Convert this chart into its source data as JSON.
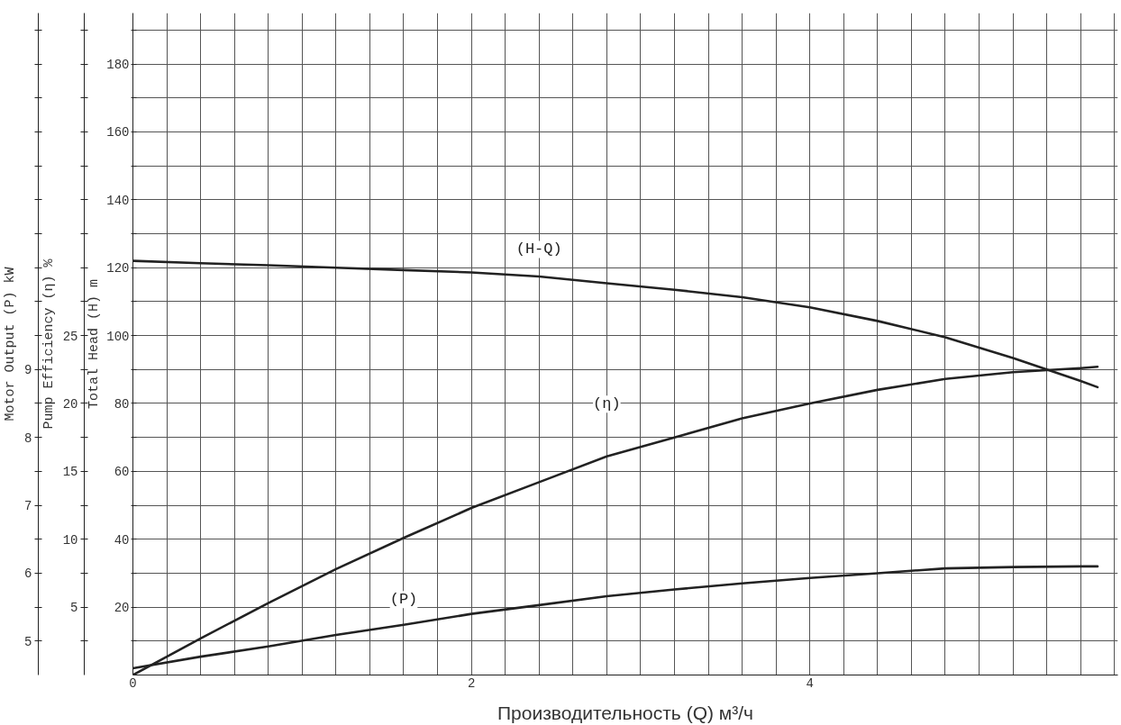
{
  "chart_data": {
    "type": "line",
    "xlabel": "Производительность (Q) м³/ч",
    "ylabel": "Total Head (H) m",
    "y2label": "Pump Efficiency (η) %",
    "y3label": "Motor Output (P) kW",
    "x": [
      0,
      0.4,
      0.8,
      1.2,
      1.6,
      2.0,
      2.4,
      2.8,
      3.2,
      3.6,
      4.0,
      4.4,
      4.8,
      5.2,
      5.6,
      5.7
    ],
    "xlim": [
      0,
      5.82
    ],
    "xticks": [
      0,
      {
        "value": 0.2,
        "label": null
      },
      {
        "value": 0.4,
        "label": null
      },
      {
        "value": 0.6,
        "label": null
      },
      {
        "value": 0.8,
        "label": null
      },
      {
        "value": 1,
        "label": null
      },
      {
        "value": 1.2,
        "label": null
      },
      {
        "value": 1.4,
        "label": null
      },
      {
        "value": 1.6,
        "label": null
      },
      {
        "value": 1.8,
        "label": null
      },
      2,
      {
        "value": 2.2,
        "label": null
      },
      {
        "value": 2.4,
        "label": null
      },
      {
        "value": 2.6,
        "label": null
      },
      {
        "value": 2.8,
        "label": null
      },
      {
        "value": 3,
        "label": null
      },
      {
        "value": 3.2,
        "label": null
      },
      {
        "value": 3.4,
        "label": null
      },
      {
        "value": 3.6,
        "label": null
      },
      {
        "value": 3.8,
        "label": null
      },
      4,
      {
        "value": 4.2,
        "label": null
      },
      {
        "value": 4.4,
        "label": null
      },
      {
        "value": 4.6,
        "label": null
      },
      {
        "value": 4.8,
        "label": null
      },
      {
        "value": 5,
        "label": null
      },
      {
        "value": 5.2,
        "label": null
      },
      {
        "value": 5.4,
        "label": null
      },
      {
        "value": 5.6,
        "label": null
      },
      {
        "value": 5.8,
        "label": null
      }
    ],
    "ylim": [
      0,
      195
    ],
    "yticks": [
      {
        "value": 10,
        "label": null
      },
      20,
      {
        "value": 30,
        "label": null
      },
      40,
      {
        "value": 50,
        "label": null
      },
      60,
      {
        "value": 70,
        "label": null
      },
      80,
      {
        "value": 90,
        "label": null
      },
      100,
      {
        "value": 110,
        "label": null
      },
      120,
      {
        "value": 130,
        "label": null
      },
      140,
      {
        "value": 150,
        "label": null
      },
      160,
      {
        "value": 170,
        "label": null
      },
      180,
      {
        "value": 190,
        "label": null
      }
    ],
    "y2lim": [
      0,
      48.75
    ],
    "y2ticks": [
      {
        "value": 2.5,
        "label": null
      },
      5,
      {
        "value": 7.5,
        "label": null
      },
      10,
      {
        "value": 12.5,
        "label": null
      },
      15,
      {
        "value": 17.5,
        "label": null
      },
      20,
      {
        "value": 22.5,
        "label": null
      },
      25,
      {
        "value": 27.5,
        "label": null
      },
      {
        "value": 30,
        "label": null
      },
      {
        "value": 32.5,
        "label": null
      },
      {
        "value": 35,
        "label": null
      },
      {
        "value": 37.5,
        "label": null
      },
      {
        "value": 40,
        "label": null
      },
      {
        "value": 42.5,
        "label": null
      },
      {
        "value": 45,
        "label": null
      },
      {
        "value": 47.5,
        "label": null
      }
    ],
    "y3lim": [
      4.5,
      14.25
    ],
    "y3ticks": [
      5,
      {
        "value": 5.5,
        "label": null
      },
      6,
      {
        "value": 6.5,
        "label": null
      },
      7,
      {
        "value": 7.5,
        "label": null
      },
      8,
      {
        "value": 8.5,
        "label": null
      },
      9,
      {
        "value": 9.5,
        "label": null
      },
      {
        "value": 10,
        "label": null
      },
      {
        "value": 10.5,
        "label": null
      },
      {
        "value": 11,
        "label": null
      },
      {
        "value": 11.5,
        "label": null
      },
      {
        "value": 12,
        "label": null
      },
      {
        "value": 12.5,
        "label": null
      },
      {
        "value": 13,
        "label": null
      },
      {
        "value": 13.5,
        "label": null
      },
      {
        "value": 14,
        "label": null
      }
    ],
    "grid": true,
    "series": [
      {
        "name": "(H-Q)",
        "color": "#222222",
        "values": [
          122,
          121.3,
          120.7,
          120.0,
          119.3,
          118.6,
          117.4,
          115.4,
          113.5,
          111.3,
          108.3,
          104.3,
          99.5,
          93.4,
          86.6,
          84.8
        ]
      },
      {
        "name": "(η)",
        "color": "#222222",
        "axis": "y2",
        "values": [
          0,
          2.7,
          5.3,
          7.8,
          10.1,
          12.3,
          14.2,
          16.1,
          17.5,
          18.9,
          20.0,
          21.0,
          21.8,
          22.3,
          22.6,
          22.7
        ]
      },
      {
        "name": "(P)",
        "color": "#222222",
        "axis": "y3",
        "values": [
          4.6,
          4.77,
          4.92,
          5.09,
          5.24,
          5.4,
          5.53,
          5.66,
          5.76,
          5.85,
          5.93,
          6.0,
          6.07,
          6.09,
          6.1,
          6.1
        ]
      }
    ]
  }
}
